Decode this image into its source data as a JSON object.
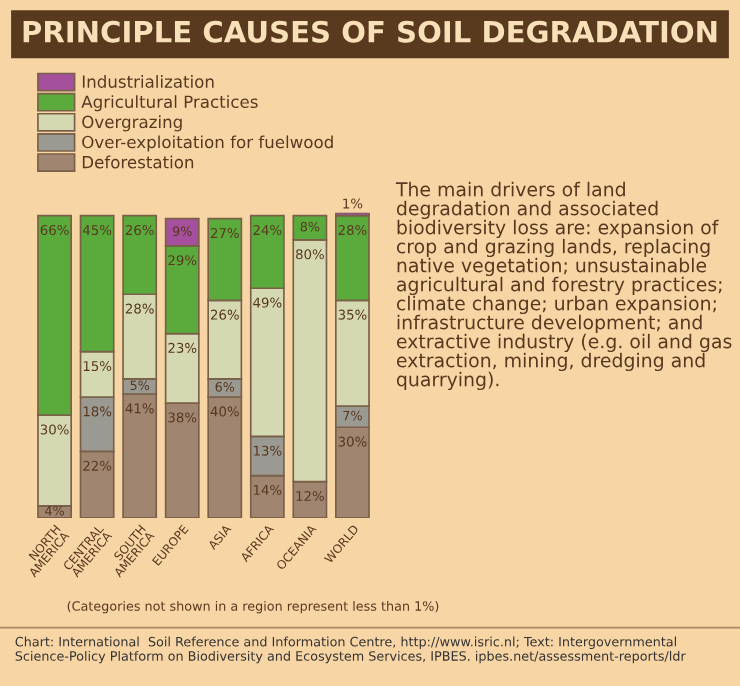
{
  "chart_data": {
    "type": "bar",
    "stacked": true,
    "title": "PRINCIPLE CAUSES OF SOIL DEGRADATION",
    "categories": [
      "NORTH AMERICA",
      "CENTRAL AMERICA",
      "SOUTH AMERICA",
      "EUROPE",
      "ASIA",
      "AFRICA",
      "OCEANIA",
      "WORLD"
    ],
    "series": [
      {
        "name": "Deforestation",
        "color": "#a08670",
        "values": [
          4,
          22,
          41,
          38,
          40,
          14,
          12,
          30
        ],
        "value_labels": [
          "4%",
          "22%",
          "41%",
          "38%",
          "40%",
          "14%",
          "12%",
          "30%"
        ]
      },
      {
        "name": "Over-exploitation for fuelwood",
        "color": "#9a9a92",
        "values": [
          null,
          18,
          5,
          null,
          6,
          13,
          null,
          7
        ],
        "value_labels": [
          null,
          "18%",
          "5%",
          null,
          "6%",
          "13%",
          null,
          "7%"
        ]
      },
      {
        "name": "Overgrazing",
        "color": "#d5d9b2",
        "values": [
          30,
          15,
          28,
          23,
          26,
          49,
          80,
          35
        ],
        "value_labels": [
          "30%",
          "15%",
          "28%",
          "23%",
          "26%",
          "49%",
          "80%",
          "35%"
        ]
      },
      {
        "name": "Agricultural Practices",
        "color": "#5aaa3c",
        "values": [
          66,
          45,
          26,
          29,
          27,
          24,
          8,
          28
        ],
        "value_labels": [
          "66%",
          "45%",
          "26%",
          "29%",
          "27%",
          "24%",
          "8%",
          "28%"
        ]
      },
      {
        "name": "Industrialization",
        "color": "#a5509c",
        "values": [
          null,
          null,
          null,
          9,
          null,
          null,
          null,
          1
        ],
        "value_labels": [
          null,
          null,
          null,
          "9%",
          null,
          null,
          null,
          "1%"
        ]
      }
    ],
    "legend": "top left",
    "tick_labels": "x",
    "grid": false,
    "annotations": [
      "The main drivers of land degradation and associated biodiversity loss are: expansion of crop and grazing lands, replacing native vegetation; unsustainable agricultural and forestry practices; climate change; urban expansion; infrastructure development; and extractive industry (e.g. oil and gas extraction, mining, dredging and quarrying).",
      "(Categories not shown in a region represent less than 1%)",
      "Chart: International  Soil Reference and Information Centre, http://www.isric.nl; Text: Intergovernmental Science-Policy Platform on Biodiversity and Ecosystem Services, IPBES. ipbes.net/assessment-reports/ldr"
    ]
  }
}
